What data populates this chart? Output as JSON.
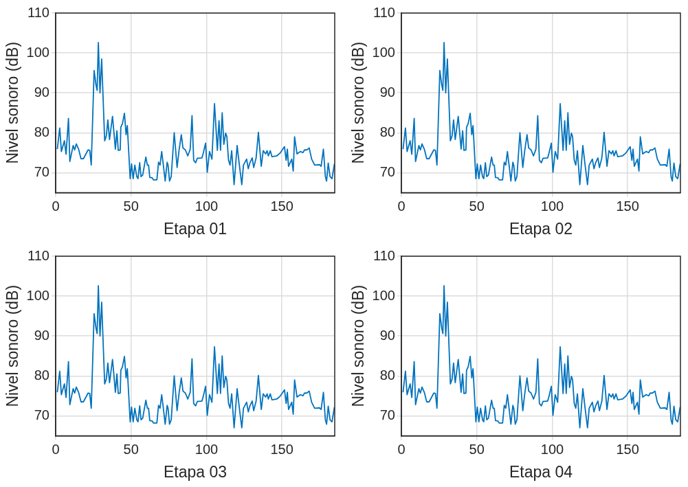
{
  "chart_data": [
    {
      "type": "line",
      "xlabel": "Etapa 01",
      "ylabel": "Nivel sonoro (dB)",
      "xlim": [
        0,
        185
      ],
      "xticks": [
        0,
        50,
        100,
        150
      ],
      "ylim": [
        65,
        110
      ],
      "yticks": [
        70,
        80,
        90,
        100,
        110
      ],
      "grid": true,
      "x": [
        1.1,
        2.7,
        3.8,
        5.8,
        6.9,
        8.5,
        9.4,
        11.6,
        12.6,
        13.7,
        15.2,
        16.8,
        18.4,
        21.5,
        22.6,
        23.6,
        25.5,
        26.7,
        27.5,
        28.3,
        29.4,
        30.5,
        32.5,
        33.6,
        34.6,
        35.7,
        37.7,
        39.6,
        40.6,
        41.5,
        42.8,
        43.2,
        44.3,
        45.6,
        46.7,
        47.5,
        49.4,
        50.3,
        51.4,
        52.5,
        53.8,
        54.6,
        55.7,
        56.6,
        57.7,
        59.8,
        60.8,
        61.6,
        62.4,
        64,
        64.8,
        67.1,
        68.2,
        69.2,
        70.3,
        71.4,
        72.6,
        73.9,
        74.5,
        75.5,
        76.6,
        78.6,
        80.5,
        81.8,
        83.3,
        84.4,
        86,
        87.6,
        89.2,
        90.4,
        91.5,
        92.8,
        93.9,
        94.7,
        97,
        97.8,
        99.4,
        100.5,
        102,
        103.6,
        105.3,
        107.2,
        108.3,
        109.3,
        110.4,
        111.5,
        112.7,
        113.5,
        114.6,
        115.6,
        116.7,
        118.3,
        120.3,
        121.8,
        123.4,
        124.5,
        126.6,
        127.7,
        128.8,
        130.3,
        131.3,
        132.9,
        134.4,
        136.3,
        137.6,
        139.2,
        140.2,
        141,
        142.3,
        143.4,
        146.6,
        149,
        151.7,
        152.8,
        153.6,
        154.4,
        156.5,
        157.5,
        158.4,
        160,
        162.3,
        163.9,
        165,
        166.5,
        168.1,
        169.7,
        171.7,
        174.9,
        176,
        177.5,
        178.8,
        179.6,
        180.7,
        181.9,
        183.2,
        184.8
      ],
      "series": [
        {
          "color": "#0072bd",
          "values": [
            75.9,
            81.2,
            75.3,
            78,
            74.6,
            83.6,
            72.8,
            76.8,
            75.7,
            77.2,
            75.9,
            73.5,
            73.5,
            75.7,
            75.6,
            71.9,
            95.6,
            92.1,
            90.6,
            102.6,
            90,
            98.5,
            78,
            79.2,
            83.2,
            78.3,
            84.1,
            75.9,
            80.5,
            75.6,
            75.7,
            81.4,
            82.3,
            84.9,
            79.5,
            81.8,
            68.5,
            72.2,
            68.5,
            71.9,
            69,
            68.5,
            72.5,
            69,
            69.4,
            73.9,
            71.9,
            71.9,
            68.8,
            68.7,
            68.2,
            68.2,
            72.6,
            71.9,
            75.3,
            71.9,
            67.9,
            72.6,
            71.9,
            67.9,
            69,
            80,
            71.3,
            75.6,
            79.5,
            76.2,
            75.7,
            74.2,
            75.9,
            84.3,
            73.1,
            72.5,
            73.6,
            73.6,
            73.7,
            74.8,
            77.4,
            70.1,
            75.3,
            73.4,
            87.3,
            75.6,
            83,
            75.6,
            85,
            77.1,
            79.9,
            79,
            73.1,
            71.9,
            75.5,
            67,
            76.8,
            71.9,
            67,
            71.9,
            73.4,
            71,
            72.5,
            73.7,
            71.3,
            73.7,
            80.1,
            71.6,
            75.5,
            74.7,
            75.5,
            74.2,
            75.5,
            74,
            74.2,
            75,
            76.5,
            73.1,
            75.9,
            71.6,
            73.4,
            70.4,
            79,
            74.7,
            75.3,
            75,
            75.7,
            75.7,
            76.2,
            73.4,
            71.9,
            72,
            71.6,
            75.9,
            69,
            67.9,
            72.4,
            69,
            68.5,
            72.2
          ]
        }
      ]
    },
    {
      "type": "line",
      "xlabel": "Etapa 02",
      "ylabel": "Nivel sonoro (dB)",
      "xlim": [
        0,
        185
      ],
      "xticks": [
        0,
        50,
        100,
        150
      ],
      "ylim": [
        65,
        110
      ],
      "yticks": [
        70,
        80,
        90,
        100,
        110
      ],
      "grid": true,
      "x": [
        1.1,
        2.7,
        3.8,
        5.8,
        6.9,
        8.5,
        9.4,
        11.6,
        12.6,
        13.7,
        15.2,
        16.8,
        18.4,
        21.5,
        22.6,
        23.6,
        25.5,
        26.7,
        27.5,
        28.3,
        29.4,
        30.5,
        32.5,
        33.6,
        34.6,
        35.7,
        37.7,
        39.6,
        40.6,
        41.5,
        42.8,
        43.2,
        44.3,
        45.6,
        46.7,
        47.5,
        49.4,
        50.3,
        51.4,
        52.5,
        53.8,
        54.6,
        55.7,
        56.6,
        57.7,
        59.8,
        60.8,
        61.6,
        62.4,
        64,
        64.8,
        67.1,
        68.2,
        69.2,
        70.3,
        71.4,
        72.6,
        73.9,
        74.5,
        75.5,
        76.6,
        78.6,
        80.5,
        81.8,
        83.3,
        84.4,
        86,
        87.6,
        89.2,
        90.4,
        91.5,
        92.8,
        93.9,
        94.7,
        97,
        97.8,
        99.4,
        100.5,
        102,
        103.6,
        105.3,
        107.2,
        108.3,
        109.3,
        110.4,
        111.5,
        112.7,
        113.5,
        114.6,
        115.6,
        116.7,
        118.3,
        120.3,
        121.8,
        123.4,
        124.5,
        126.6,
        127.7,
        128.8,
        130.3,
        131.3,
        132.9,
        134.4,
        136.3,
        137.6,
        139.2,
        140.2,
        141,
        142.3,
        143.4,
        146.6,
        149,
        151.7,
        152.8,
        153.6,
        154.4,
        156.5,
        157.5,
        158.4,
        160,
        162.3,
        163.9,
        165,
        166.5,
        168.1,
        169.7,
        171.7,
        174.9,
        176,
        177.5,
        178.8,
        179.6,
        180.7,
        181.9,
        183.2,
        184.8
      ],
      "series": [
        {
          "color": "#0072bd",
          "values": [
            75.9,
            81.2,
            75.3,
            78,
            74.6,
            83.6,
            72.8,
            76.8,
            75.7,
            77.2,
            75.9,
            73.5,
            73.5,
            75.7,
            75.6,
            71.9,
            95.6,
            92.1,
            90.6,
            102.6,
            90,
            98.5,
            78,
            79.2,
            83.2,
            78.3,
            84.1,
            75.9,
            80.5,
            75.6,
            75.7,
            81.4,
            82.3,
            84.9,
            79.5,
            81.8,
            68.5,
            72.2,
            68.5,
            71.9,
            69,
            68.5,
            72.5,
            69,
            69.4,
            73.9,
            71.9,
            71.9,
            68.8,
            68.7,
            68.2,
            68.2,
            72.6,
            71.9,
            75.3,
            71.9,
            67.9,
            72.6,
            71.9,
            67.9,
            69,
            80,
            71.3,
            75.6,
            79.5,
            76.2,
            75.7,
            74.2,
            75.9,
            84.3,
            73.1,
            72.5,
            73.6,
            73.6,
            73.7,
            74.8,
            77.4,
            70.1,
            75.3,
            73.4,
            87.3,
            75.6,
            83,
            75.6,
            85,
            77.1,
            79.9,
            79,
            73.1,
            71.9,
            75.5,
            67,
            76.8,
            71.9,
            67,
            71.9,
            73.4,
            71,
            72.5,
            73.7,
            71.3,
            73.7,
            80.1,
            71.6,
            75.5,
            74.7,
            75.5,
            74.2,
            75.5,
            74,
            74.2,
            75,
            76.5,
            73.1,
            75.9,
            71.6,
            73.4,
            70.4,
            79,
            74.7,
            75.3,
            75,
            75.7,
            75.7,
            76.2,
            73.4,
            71.9,
            72,
            71.6,
            75.9,
            69,
            67.9,
            72.4,
            69,
            68.5,
            72.2
          ]
        }
      ]
    },
    {
      "type": "line",
      "xlabel": "Etapa 03",
      "ylabel": "Nivel sonoro (dB)",
      "xlim": [
        0,
        185
      ],
      "xticks": [
        0,
        50,
        100,
        150
      ],
      "ylim": [
        65,
        110
      ],
      "yticks": [
        70,
        80,
        90,
        100,
        110
      ],
      "grid": true,
      "x": [
        1.1,
        2.7,
        3.8,
        5.8,
        6.9,
        8.5,
        9.4,
        11.6,
        12.6,
        13.7,
        15.2,
        16.8,
        18.4,
        21.5,
        22.6,
        23.6,
        25.5,
        26.7,
        27.5,
        28.3,
        29.4,
        30.5,
        32.5,
        33.6,
        34.6,
        35.7,
        37.7,
        39.6,
        40.6,
        41.5,
        42.8,
        43.2,
        44.3,
        45.6,
        46.7,
        47.5,
        49.4,
        50.3,
        51.4,
        52.5,
        53.8,
        54.6,
        55.7,
        56.6,
        57.7,
        59.8,
        60.8,
        61.6,
        62.4,
        64,
        64.8,
        67.1,
        68.2,
        69.2,
        70.3,
        71.4,
        72.6,
        73.9,
        74.5,
        75.5,
        76.6,
        78.6,
        80.5,
        81.8,
        83.3,
        84.4,
        86,
        87.6,
        89.2,
        90.4,
        91.5,
        92.8,
        93.9,
        94.7,
        97,
        97.8,
        99.4,
        100.5,
        102,
        103.6,
        105.3,
        107.2,
        108.3,
        109.3,
        110.4,
        111.5,
        112.7,
        113.5,
        114.6,
        115.6,
        116.7,
        118.3,
        120.3,
        121.8,
        123.4,
        124.5,
        126.6,
        127.7,
        128.8,
        130.3,
        131.3,
        132.9,
        134.4,
        136.3,
        137.6,
        139.2,
        140.2,
        141,
        142.3,
        143.4,
        146.6,
        149,
        151.7,
        152.8,
        153.6,
        154.4,
        156.5,
        157.5,
        158.4,
        160,
        162.3,
        163.9,
        165,
        166.5,
        168.1,
        169.7,
        171.7,
        174.9,
        176,
        177.5,
        178.8,
        179.6,
        180.7,
        181.9,
        183.2,
        184.8
      ],
      "series": [
        {
          "color": "#0072bd",
          "values": [
            75.9,
            81.2,
            75.3,
            78,
            74.6,
            83.6,
            72.8,
            76.8,
            75.7,
            77.2,
            75.9,
            73.5,
            73.5,
            75.7,
            75.6,
            71.9,
            95.6,
            92.1,
            90.6,
            102.6,
            90,
            98.5,
            78,
            79.2,
            83.2,
            78.3,
            84.1,
            75.9,
            80.5,
            75.6,
            75.7,
            81.4,
            82.3,
            84.9,
            79.5,
            81.8,
            68.5,
            72.2,
            68.5,
            71.9,
            69,
            68.5,
            72.5,
            69,
            69.4,
            73.9,
            71.9,
            71.9,
            68.8,
            68.7,
            68.2,
            68.2,
            72.6,
            71.9,
            75.3,
            71.9,
            67.9,
            72.6,
            71.9,
            67.9,
            69,
            80,
            71.3,
            75.6,
            79.5,
            76.2,
            75.7,
            74.2,
            75.9,
            84.3,
            73.1,
            72.5,
            73.6,
            73.6,
            73.7,
            74.8,
            77.4,
            70.1,
            75.3,
            73.4,
            87.3,
            75.6,
            83,
            75.6,
            85,
            77.1,
            79.9,
            79,
            73.1,
            71.9,
            75.5,
            67,
            76.8,
            71.9,
            67,
            71.9,
            73.4,
            71,
            72.5,
            73.7,
            71.3,
            73.7,
            80.1,
            71.6,
            75.5,
            74.7,
            75.5,
            74.2,
            75.5,
            74,
            74.2,
            75,
            76.5,
            73.1,
            75.9,
            71.6,
            73.4,
            70.4,
            79,
            74.7,
            75.3,
            75,
            75.7,
            75.7,
            76.2,
            73.4,
            71.9,
            72,
            71.6,
            75.9,
            69,
            67.9,
            72.4,
            69,
            68.5,
            72.2
          ]
        }
      ]
    },
    {
      "type": "line",
      "xlabel": "Etapa 04",
      "ylabel": "Nivel sonoro (dB)",
      "xlim": [
        0,
        185
      ],
      "xticks": [
        0,
        50,
        100,
        150
      ],
      "ylim": [
        65,
        110
      ],
      "yticks": [
        70,
        80,
        90,
        100,
        110
      ],
      "grid": true,
      "x": [
        1.1,
        2.7,
        3.8,
        5.8,
        6.9,
        8.5,
        9.4,
        11.6,
        12.6,
        13.7,
        15.2,
        16.8,
        18.4,
        21.5,
        22.6,
        23.6,
        25.5,
        26.7,
        27.5,
        28.3,
        29.4,
        30.5,
        32.5,
        33.6,
        34.6,
        35.7,
        37.7,
        39.6,
        40.6,
        41.5,
        42.8,
        43.2,
        44.3,
        45.6,
        46.7,
        47.5,
        49.4,
        50.3,
        51.4,
        52.5,
        53.8,
        54.6,
        55.7,
        56.6,
        57.7,
        59.8,
        60.8,
        61.6,
        62.4,
        64,
        64.8,
        67.1,
        68.2,
        69.2,
        70.3,
        71.4,
        72.6,
        73.9,
        74.5,
        75.5,
        76.6,
        78.6,
        80.5,
        81.8,
        83.3,
        84.4,
        86,
        87.6,
        89.2,
        90.4,
        91.5,
        92.8,
        93.9,
        94.7,
        97,
        97.8,
        99.4,
        100.5,
        102,
        103.6,
        105.3,
        107.2,
        108.3,
        109.3,
        110.4,
        111.5,
        112.7,
        113.5,
        114.6,
        115.6,
        116.7,
        118.3,
        120.3,
        121.8,
        123.4,
        124.5,
        126.6,
        127.7,
        128.8,
        130.3,
        131.3,
        132.9,
        134.4,
        136.3,
        137.6,
        139.2,
        140.2,
        141,
        142.3,
        143.4,
        146.6,
        149,
        151.7,
        152.8,
        153.6,
        154.4,
        156.5,
        157.5,
        158.4,
        160,
        162.3,
        163.9,
        165,
        166.5,
        168.1,
        169.7,
        171.7,
        174.9,
        176,
        177.5,
        178.8,
        179.6,
        180.7,
        181.9,
        183.2,
        184.8
      ],
      "series": [
        {
          "color": "#0072bd",
          "values": [
            75.9,
            81.2,
            75.3,
            78,
            74.6,
            83.6,
            72.8,
            76.8,
            75.7,
            77.2,
            75.9,
            73.5,
            73.5,
            75.7,
            75.6,
            71.9,
            95.6,
            92.1,
            90.6,
            102.6,
            90,
            98.5,
            78,
            79.2,
            83.2,
            78.3,
            84.1,
            75.9,
            80.5,
            75.6,
            75.7,
            81.4,
            82.3,
            84.9,
            79.5,
            81.8,
            68.5,
            72.2,
            68.5,
            71.9,
            69,
            68.5,
            72.5,
            69,
            69.4,
            73.9,
            71.9,
            71.9,
            68.8,
            68.7,
            68.2,
            68.2,
            72.6,
            71.9,
            75.3,
            71.9,
            67.9,
            72.6,
            71.9,
            67.9,
            69,
            80,
            71.3,
            75.6,
            79.5,
            76.2,
            75.7,
            74.2,
            75.9,
            84.3,
            73.1,
            72.5,
            73.6,
            73.6,
            73.7,
            74.8,
            77.4,
            70.1,
            75.3,
            73.4,
            87.3,
            75.6,
            83,
            75.6,
            85,
            77.1,
            79.9,
            79,
            73.1,
            71.9,
            75.5,
            67,
            76.8,
            71.9,
            67,
            71.9,
            73.4,
            71,
            72.5,
            73.7,
            71.3,
            73.7,
            80.1,
            71.6,
            75.5,
            74.7,
            75.5,
            74.2,
            75.5,
            74,
            74.2,
            75,
            76.5,
            73.1,
            75.9,
            71.6,
            73.4,
            70.4,
            79,
            74.7,
            75.3,
            75,
            75.7,
            75.7,
            76.2,
            73.4,
            71.9,
            72,
            71.6,
            75.9,
            69,
            67.9,
            72.4,
            69,
            68.5,
            72.2
          ]
        }
      ]
    }
  ]
}
